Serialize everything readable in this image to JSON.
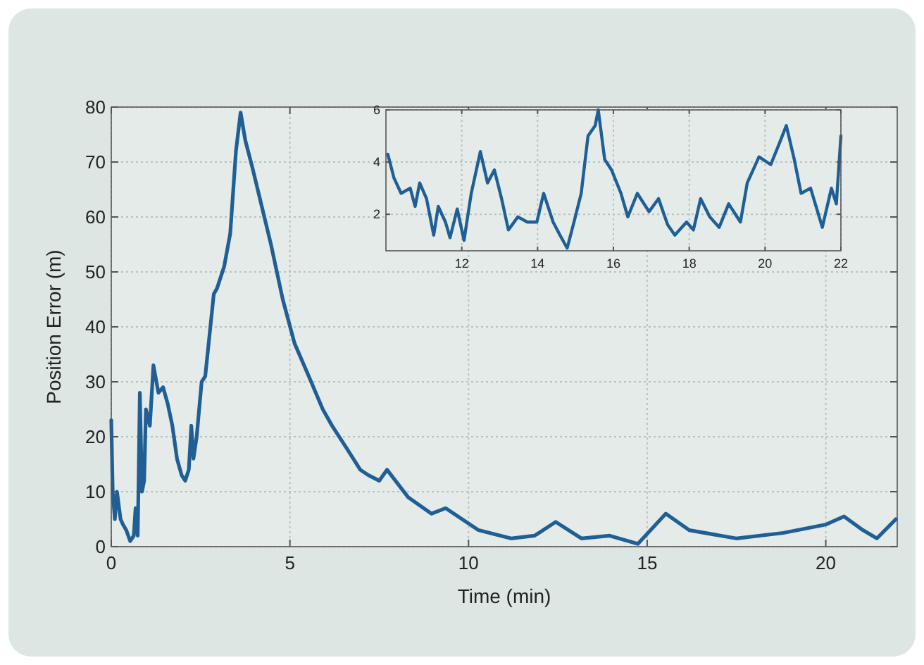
{
  "chart_data": [
    {
      "type": "line",
      "xlabel": "Time (min)",
      "ylabel": "Position Error (m)",
      "xlim": [
        0,
        22
      ],
      "ylim": [
        0,
        80
      ],
      "xticks": [
        0,
        5,
        10,
        15,
        20
      ],
      "yticks": [
        0,
        10,
        20,
        30,
        40,
        50,
        60,
        70,
        80
      ],
      "grid": true,
      "series": [
        {
          "color": "#1f5f96",
          "x": [
            0,
            0.04,
            0.1,
            0.16,
            0.26,
            0.33,
            0.42,
            0.53,
            0.63,
            0.68,
            0.74,
            0.76,
            0.8,
            0.86,
            0.92,
            0.97,
            1.08,
            1.18,
            1.32,
            1.45,
            1.58,
            1.71,
            1.84,
            1.97,
            2.07,
            2.17,
            2.24,
            2.3,
            2.39,
            2.53,
            2.63,
            2.87,
            2.96,
            3.16,
            3.33,
            3.49,
            3.62,
            3.75,
            3.95,
            4.21,
            4.47,
            4.8,
            5.13,
            5.53,
            5.92,
            6.18,
            6.58,
            6.97,
            7.2,
            7.5,
            7.72,
            8.31,
            8.96,
            9.36,
            10.28,
            11.19,
            11.85,
            12.44,
            13.16,
            13.95,
            14.74,
            15.52,
            16.18,
            17.49,
            18.81,
            19.99,
            20.51,
            21.04,
            21.43,
            21.96
          ],
          "values": [
            23,
            10,
            5,
            10,
            5,
            4,
            3,
            1,
            2,
            7,
            2,
            10,
            28,
            10,
            12,
            25,
            22,
            33,
            28,
            29,
            26,
            22,
            16,
            13,
            12,
            14,
            22,
            16,
            20,
            30,
            31,
            46,
            47,
            51,
            57,
            72,
            79,
            74,
            69,
            62,
            55,
            45,
            37,
            31,
            25,
            22,
            18,
            14,
            13,
            12,
            14,
            9,
            6,
            7,
            3,
            1.5,
            2,
            4.5,
            1.5,
            2,
            0.5,
            6,
            3,
            1.5,
            2.5,
            4,
            5.5,
            3,
            1.5,
            5
          ]
        }
      ]
    },
    {
      "type": "line",
      "xlim": [
        10,
        22
      ],
      "ylim": [
        0.6,
        6
      ],
      "xticks": [
        12,
        14,
        16,
        18,
        20,
        22
      ],
      "yticks": [
        2,
        4,
        6
      ],
      "grid": true,
      "series": [
        {
          "color": "#1f5f96",
          "x": [
            10.05,
            10.21,
            10.4,
            10.64,
            10.77,
            10.89,
            11.07,
            11.26,
            11.38,
            11.57,
            11.69,
            11.88,
            12.06,
            12.25,
            12.49,
            12.68,
            12.86,
            13.05,
            13.23,
            13.48,
            13.73,
            13.98,
            14.16,
            14.41,
            14.59,
            14.78,
            14.96,
            15.15,
            15.33,
            15.52,
            15.6,
            15.77,
            15.95,
            16.2,
            16.38,
            16.63,
            16.94,
            17.19,
            17.43,
            17.62,
            17.93,
            18.11,
            18.3,
            18.54,
            18.79,
            19.04,
            19.35,
            19.53,
            19.84,
            20.15,
            20.4,
            20.56,
            20.77,
            20.95,
            21.2,
            21.51,
            21.75,
            21.88,
            22
          ],
          "values": [
            4.3,
            3.4,
            2.8,
            3,
            2.3,
            3.2,
            2.6,
            1.2,
            2.3,
            1.7,
            1.1,
            2.2,
            1,
            2.8,
            4.4,
            3.2,
            3.7,
            2.6,
            1.4,
            1.9,
            1.7,
            1.7,
            2.8,
            1.7,
            1.2,
            0.7,
            1.7,
            2.8,
            5,
            5.4,
            6,
            4.1,
            3.7,
            2.8,
            1.9,
            2.8,
            2.1,
            2.6,
            1.6,
            1.2,
            1.7,
            1.4,
            2.6,
            1.9,
            1.5,
            2.4,
            1.7,
            3.2,
            4.2,
            3.9,
            4.8,
            5.4,
            4.1,
            2.8,
            3,
            1.5,
            3,
            2.4,
            5
          ]
        }
      ]
    }
  ]
}
